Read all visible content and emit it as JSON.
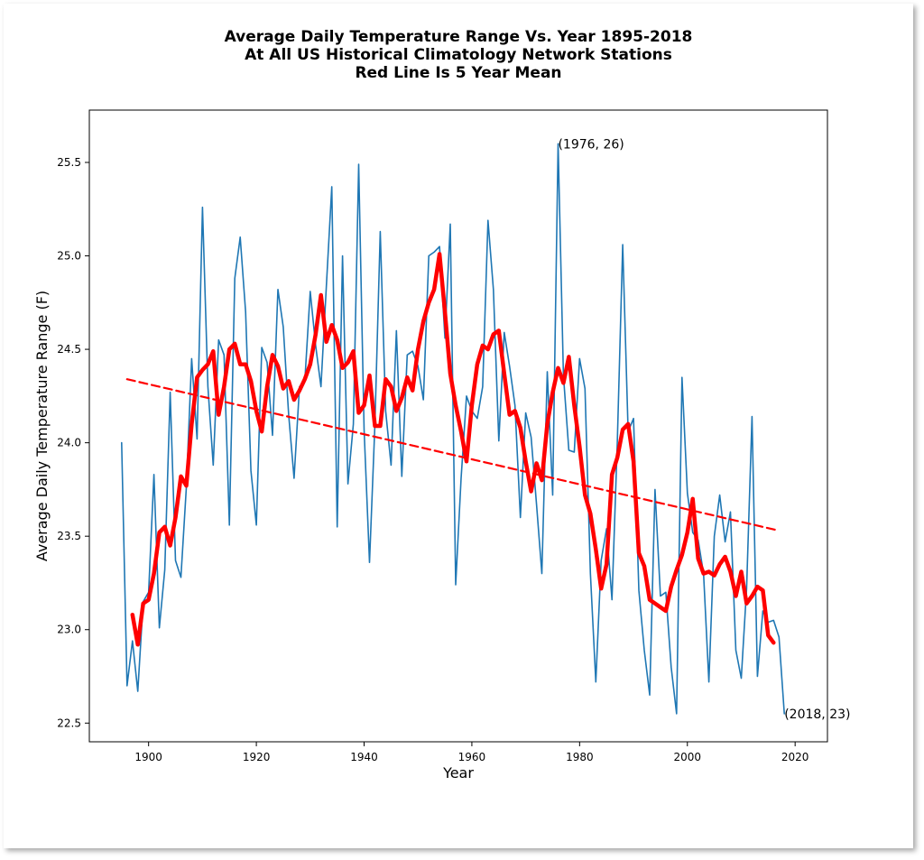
{
  "chart_data": {
    "type": "line",
    "title": [
      "Average Daily Temperature Range Vs. Year 1895-2018",
      "At All US Historical Climatology Network Stations",
      "Red Line Is 5 Year Mean"
    ],
    "xlabel": "Year",
    "ylabel": "Average Daily Temperature Range (F)",
    "xlim": [
      1889,
      2026
    ],
    "ylim": [
      22.4,
      25.78
    ],
    "xticks": [
      1900,
      1920,
      1940,
      1960,
      1980,
      2000,
      2020
    ],
    "xtick_labels": [
      "1900",
      "1920",
      "1940",
      "1960",
      "1980",
      "2000",
      "2020"
    ],
    "yticks": [
      22.5,
      23.0,
      23.5,
      24.0,
      24.5,
      25.0,
      25.5
    ],
    "ytick_labels": [
      "22.5",
      "23.0",
      "23.5",
      "24.0",
      "24.5",
      "25.0",
      "25.5"
    ],
    "grid": false,
    "colors": {
      "annual": "#1f77b4",
      "mean": "#ff0000",
      "trend": "#ff0000"
    },
    "annotations": [
      {
        "text": "(1976, 26)",
        "x": 1976,
        "y": 25.6
      },
      {
        "text": "(2018, 23)",
        "x": 2018,
        "y": 22.55
      }
    ],
    "series": [
      {
        "role": "annual",
        "style": "thin-line",
        "x": [
          1895,
          1896,
          1897,
          1898,
          1899,
          1900,
          1901,
          1902,
          1903,
          1904,
          1905,
          1906,
          1907,
          1908,
          1909,
          1910,
          1911,
          1912,
          1913,
          1914,
          1915,
          1916,
          1917,
          1918,
          1919,
          1920,
          1921,
          1922,
          1923,
          1924,
          1925,
          1926,
          1927,
          1928,
          1929,
          1930,
          1931,
          1932,
          1933,
          1934,
          1935,
          1936,
          1937,
          1938,
          1939,
          1940,
          1941,
          1942,
          1943,
          1944,
          1945,
          1946,
          1947,
          1948,
          1949,
          1950,
          1951,
          1952,
          1953,
          1954,
          1955,
          1956,
          1957,
          1958,
          1959,
          1960,
          1961,
          1962,
          1963,
          1964,
          1965,
          1966,
          1967,
          1968,
          1969,
          1970,
          1971,
          1972,
          1973,
          1974,
          1975,
          1976,
          1977,
          1978,
          1979,
          1980,
          1981,
          1982,
          1983,
          1984,
          1985,
          1986,
          1987,
          1988,
          1989,
          1990,
          1991,
          1992,
          1993,
          1994,
          1995,
          1996,
          1997,
          1998,
          1999,
          2000,
          2001,
          2002,
          2003,
          2004,
          2005,
          2006,
          2007,
          2008,
          2009,
          2010,
          2011,
          2012,
          2013,
          2014,
          2015,
          2016,
          2017,
          2018
        ],
        "y": [
          24.0,
          22.7,
          22.94,
          22.67,
          23.15,
          23.2,
          23.83,
          23.01,
          23.32,
          24.27,
          23.37,
          23.28,
          23.76,
          24.45,
          24.02,
          25.26,
          24.3,
          23.88,
          24.55,
          24.47,
          23.56,
          24.88,
          25.1,
          24.7,
          23.85,
          23.56,
          24.51,
          24.43,
          24.04,
          24.82,
          24.62,
          24.15,
          23.81,
          24.3,
          24.33,
          24.81,
          24.52,
          24.3,
          24.84,
          25.37,
          23.55,
          25.0,
          23.78,
          24.1,
          25.49,
          24.07,
          23.36,
          24.1,
          25.13,
          24.17,
          23.88,
          24.6,
          23.82,
          24.47,
          24.49,
          24.41,
          24.23,
          25.0,
          25.02,
          25.05,
          24.56,
          25.17,
          23.24,
          23.81,
          24.25,
          24.17,
          24.13,
          24.3,
          25.19,
          24.82,
          24.01,
          24.59,
          24.41,
          24.2,
          23.6,
          24.16,
          24.03,
          23.67,
          23.3,
          24.38,
          23.72,
          25.6,
          24.36,
          23.96,
          23.95,
          24.45,
          24.29,
          23.3,
          22.72,
          23.37,
          23.54,
          23.16,
          24.0,
          25.06,
          24.06,
          24.13,
          23.21,
          22.89,
          22.65,
          23.75,
          23.18,
          23.2,
          22.8,
          22.55,
          24.35,
          23.73,
          23.52,
          23.48,
          23.3,
          22.72,
          23.5,
          23.72,
          23.47,
          23.63,
          22.89,
          22.74,
          23.22,
          24.14,
          22.75,
          23.1,
          23.04,
          23.05,
          22.96,
          22.55
        ]
      },
      {
        "role": "5-year mean",
        "style": "thick-line",
        "x": [
          1897,
          1898,
          1899,
          1900,
          1901,
          1902,
          1903,
          1904,
          1905,
          1906,
          1907,
          1908,
          1909,
          1910,
          1911,
          1912,
          1913,
          1914,
          1915,
          1916,
          1917,
          1918,
          1919,
          1920,
          1921,
          1922,
          1923,
          1924,
          1925,
          1926,
          1927,
          1928,
          1929,
          1930,
          1931,
          1932,
          1933,
          1934,
          1935,
          1936,
          1937,
          1938,
          1939,
          1940,
          1941,
          1942,
          1943,
          1944,
          1945,
          1946,
          1947,
          1948,
          1949,
          1950,
          1951,
          1952,
          1953,
          1954,
          1955,
          1956,
          1957,
          1958,
          1959,
          1960,
          1961,
          1962,
          1963,
          1964,
          1965,
          1966,
          1967,
          1968,
          1969,
          1970,
          1971,
          1972,
          1973,
          1974,
          1975,
          1976,
          1977,
          1978,
          1979,
          1980,
          1981,
          1982,
          1983,
          1984,
          1985,
          1986,
          1987,
          1988,
          1989,
          1990,
          1991,
          1992,
          1993,
          1994,
          1995,
          1996,
          1997,
          1998,
          1999,
          2000,
          2001,
          2002,
          2003,
          2004,
          2005,
          2006,
          2007,
          2008,
          2009,
          2010,
          2011,
          2012,
          2013,
          2014,
          2015,
          2016
        ],
        "y": [
          23.08,
          22.92,
          23.14,
          23.16,
          23.3,
          23.52,
          23.55,
          23.45,
          23.6,
          23.82,
          23.77,
          24.1,
          24.35,
          24.39,
          24.42,
          24.49,
          24.15,
          24.3,
          24.5,
          24.53,
          24.42,
          24.42,
          24.33,
          24.17,
          24.06,
          24.3,
          24.47,
          24.41,
          24.29,
          24.33,
          24.23,
          24.28,
          24.34,
          24.42,
          24.58,
          24.79,
          24.54,
          24.63,
          24.55,
          24.4,
          24.43,
          24.49,
          24.16,
          24.2,
          24.36,
          24.09,
          24.09,
          24.34,
          24.3,
          24.17,
          24.24,
          24.35,
          24.28,
          24.5,
          24.65,
          24.75,
          24.82,
          25.01,
          24.7,
          24.37,
          24.2,
          24.06,
          23.9,
          24.2,
          24.42,
          24.52,
          24.5,
          24.58,
          24.6,
          24.37,
          24.15,
          24.17,
          24.08,
          23.9,
          23.74,
          23.89,
          23.8,
          24.1,
          24.27,
          24.4,
          24.32,
          24.46,
          24.2,
          23.98,
          23.72,
          23.62,
          23.43,
          23.22,
          23.35,
          23.83,
          23.92,
          24.07,
          24.1,
          23.9,
          23.41,
          23.34,
          23.16,
          23.14,
          23.12,
          23.1,
          23.23,
          23.32,
          23.4,
          23.52,
          23.7,
          23.38,
          23.3,
          23.31,
          23.29,
          23.35,
          23.39,
          23.31,
          23.18,
          23.31,
          23.14,
          23.18,
          23.23,
          23.21,
          22.97,
          22.93
        ]
      },
      {
        "role": "linear trend",
        "style": "dashed-line",
        "x": [
          1896,
          2017
        ],
        "y": [
          24.34,
          23.53
        ]
      }
    ]
  }
}
